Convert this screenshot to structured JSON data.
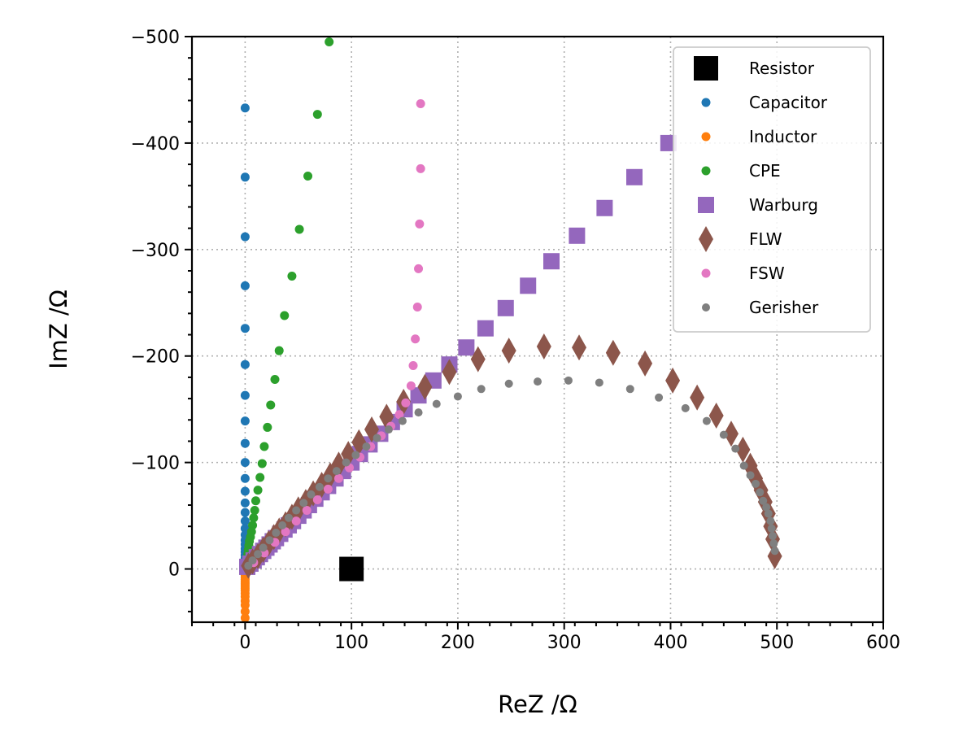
{
  "chart_data": {
    "type": "scatter",
    "title": "",
    "xlabel": "ReZ /Ω",
    "ylabel": "ImZ /Ω",
    "xlim": [
      -50,
      600
    ],
    "ylim": [
      50,
      -500
    ],
    "y_inverted": true,
    "x_ticks": [
      0,
      100,
      200,
      300,
      400,
      500,
      600
    ],
    "y_ticks": [
      0,
      -100,
      -200,
      -300,
      -400,
      -500
    ],
    "x_tick_labels": [
      "0",
      "100",
      "200",
      "300",
      "400",
      "500",
      "600"
    ],
    "y_tick_labels": [
      "0",
      "−100",
      "−200",
      "−300",
      "−400",
      "−500"
    ],
    "grid": true,
    "legend": {
      "placement": "top-right"
    },
    "series": [
      {
        "name": "Resistor",
        "marker": "square-large",
        "color": "#000000",
        "x": [
          100
        ],
        "y": [
          0
        ]
      },
      {
        "name": "Capacitor",
        "marker": "circle",
        "color": "#1f77b4",
        "x": [
          0,
          0,
          0,
          0,
          0,
          0,
          0,
          0,
          0,
          0,
          0,
          0,
          0,
          0,
          0,
          0,
          0,
          0,
          0,
          0,
          0,
          0,
          0,
          0,
          0,
          0
        ],
        "y": [
          -433,
          -368,
          -312,
          -266,
          -226,
          -192,
          -163,
          -139,
          -118,
          -100,
          -85,
          -73,
          -62,
          -53,
          -45,
          -38,
          -32,
          -27,
          -23,
          -19,
          -16,
          -13,
          -10,
          -7,
          -4,
          -1
        ]
      },
      {
        "name": "Inductor",
        "marker": "circle",
        "color": "#ff7f0e",
        "x": [
          0,
          0,
          0,
          0,
          0,
          0,
          0,
          0,
          0,
          0,
          0,
          0,
          0,
          0,
          0,
          0,
          0,
          0
        ],
        "y": [
          -1,
          1,
          2,
          4,
          6,
          8,
          10,
          12,
          14,
          16,
          18,
          20,
          23,
          26,
          30,
          34,
          40,
          46
        ]
      },
      {
        "name": "CPE",
        "marker": "circle",
        "color": "#2ca02c",
        "x": [
          79,
          68,
          59,
          51,
          44,
          37,
          32,
          28,
          24,
          21,
          18,
          16,
          14,
          12,
          10,
          9,
          8,
          7,
          6,
          5,
          4,
          3.5,
          3,
          2.5,
          2,
          1.5,
          1
        ],
        "y": [
          -495,
          -427,
          -369,
          -319,
          -275,
          -238,
          -205,
          -178,
          -154,
          -133,
          -115,
          -99,
          -86,
          -74,
          -64,
          -55,
          -48,
          -41,
          -35,
          -30,
          -26,
          -22,
          -18,
          -14,
          -10,
          -6,
          -3
        ]
      },
      {
        "name": "Warburg",
        "marker": "square",
        "color": "#9467bd",
        "x": [
          398,
          366,
          338,
          312,
          288,
          266,
          245,
          226,
          208,
          192,
          177,
          163,
          150,
          138,
          127,
          117,
          108,
          100,
          92,
          85,
          78,
          72,
          66,
          60,
          55,
          50,
          45,
          41,
          37,
          33,
          29,
          26,
          23,
          20,
          17,
          14,
          11,
          8,
          5,
          2
        ],
        "y": [
          -400,
          -368,
          -339,
          -313,
          -289,
          -266,
          -245,
          -226,
          -208,
          -192,
          -177,
          -163,
          -150,
          -138,
          -127,
          -117,
          -108,
          -100,
          -92,
          -85,
          -78,
          -72,
          -66,
          -60,
          -55,
          -50,
          -45,
          -41,
          -37,
          -33,
          -29,
          -26,
          -23,
          -20,
          -17,
          -14,
          -11,
          -8,
          -5,
          -2
        ]
      },
      {
        "name": "FLW",
        "marker": "diamond",
        "color": "#8c564b",
        "x": [
          498,
          496,
          494,
          492,
          489,
          485,
          480,
          475,
          468,
          457,
          443,
          425,
          402,
          376,
          346,
          314,
          281,
          248,
          219,
          192,
          169,
          149,
          133,
          119,
          107,
          97,
          88,
          80,
          72,
          64,
          57,
          50,
          44,
          38,
          32,
          27,
          22,
          17,
          12,
          7,
          3
        ],
        "y": [
          -12,
          -28,
          -40,
          -52,
          -63,
          -74,
          -85,
          -97,
          -112,
          -127,
          -144,
          -161,
          -177,
          -193,
          -203,
          -208,
          -209,
          -205,
          -197,
          -185,
          -171,
          -157,
          -143,
          -131,
          -119,
          -108,
          -98,
          -88,
          -79,
          -71,
          -63,
          -56,
          -49,
          -42,
          -36,
          -30,
          -24,
          -18,
          -12,
          -7,
          -3
        ]
      },
      {
        "name": "FSW",
        "marker": "circle",
        "color": "#e377c2",
        "x": [
          165,
          165,
          164,
          163,
          162,
          160,
          158,
          156,
          151,
          145,
          137,
          128,
          118,
          108,
          98,
          88,
          78,
          68,
          58,
          48,
          38,
          28,
          18,
          8
        ],
        "y": [
          -437,
          -376,
          -324,
          -282,
          -246,
          -216,
          -191,
          -172,
          -156,
          -145,
          -134,
          -125,
          -115,
          -105,
          -95,
          -85,
          -75,
          -65,
          -55,
          -45,
          -35,
          -25,
          -15,
          -6
        ]
      },
      {
        "name": "Gerisher",
        "marker": "circle-small",
        "color": "#7f7f7f",
        "x": [
          498,
          497,
          496,
          495,
          494,
          492,
          490,
          487,
          484,
          480,
          475,
          469,
          461,
          450,
          434,
          414,
          389,
          362,
          333,
          304,
          275,
          248,
          222,
          200,
          180,
          163,
          148,
          135,
          124,
          114,
          104,
          95,
          86,
          78,
          70,
          62,
          55,
          48,
          41,
          35,
          29,
          23,
          17,
          12,
          7,
          3
        ],
        "y": [
          -17,
          -24,
          -31,
          -38,
          -45,
          -52,
          -58,
          -64,
          -72,
          -80,
          -88,
          -97,
          -113,
          -126,
          -139,
          -151,
          -161,
          -169,
          -175,
          -177,
          -176,
          -174,
          -169,
          -162,
          -155,
          -147,
          -139,
          -131,
          -123,
          -115,
          -107,
          -100,
          -92,
          -85,
          -77,
          -70,
          -62,
          -55,
          -48,
          -41,
          -34,
          -27,
          -20,
          -14,
          -8,
          -3
        ]
      }
    ]
  }
}
